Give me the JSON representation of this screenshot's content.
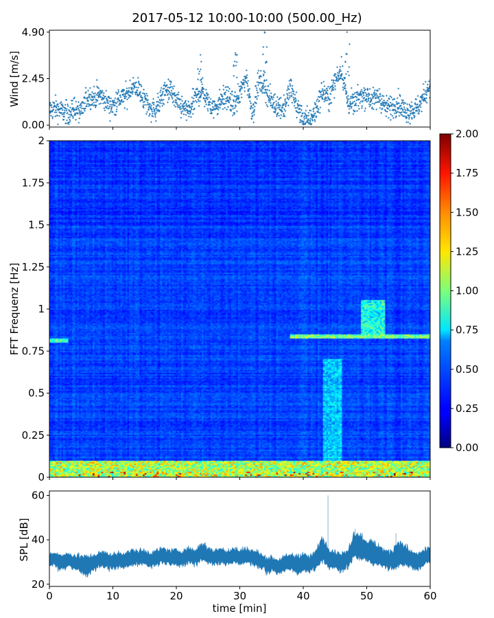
{
  "figure": {
    "title": "2017-05-12 10:00-10:00 (500.00_Hz)"
  },
  "chart_data": [
    {
      "type": "scatter",
      "panel": "wind",
      "ylabel": "Wind [m/s]",
      "xlim": [
        0,
        60
      ],
      "ylim": [
        -0.1,
        5.0
      ],
      "yticks": [
        0.0,
        2.45,
        4.9
      ],
      "ytick_labels": [
        "0.00",
        "2.45",
        "4.90"
      ],
      "color": "#1f77b4",
      "marker": "plus",
      "x": [
        0,
        1,
        2,
        3,
        4,
        5,
        6,
        7,
        8,
        9,
        10,
        11,
        12,
        13,
        14,
        15,
        16,
        17,
        18,
        19,
        20,
        21,
        22,
        23,
        24,
        25,
        26,
        27,
        28,
        29,
        30,
        31,
        32,
        33,
        34,
        35,
        36,
        37,
        38,
        39,
        40,
        41,
        42,
        43,
        44,
        45,
        46,
        47,
        48,
        49,
        50,
        51,
        52,
        53,
        54,
        55,
        56,
        57,
        58,
        59,
        60
      ],
      "y": [
        0.8,
        0.9,
        0.7,
        0.6,
        0.9,
        0.6,
        1.5,
        1.4,
        1.6,
        1.2,
        1.0,
        1.4,
        1.5,
        2.0,
        1.9,
        1.3,
        0.8,
        0.9,
        1.7,
        1.9,
        1.2,
        0.9,
        0.7,
        1.4,
        1.8,
        1.2,
        0.9,
        1.3,
        1.5,
        1.0,
        1.6,
        2.6,
        0.6,
        2.3,
        2.0,
        1.2,
        1.0,
        0.9,
        2.0,
        1.0,
        0.3,
        0.2,
        0.8,
        1.8,
        1.4,
        2.3,
        3.0,
        1.2,
        1.1,
        1.5,
        1.6,
        1.3,
        1.5,
        0.9,
        1.0,
        1.2,
        0.7,
        0.8,
        0.9,
        1.5,
        2.2
      ],
      "peaks": [
        {
          "x": 23.8,
          "y": 3.7
        },
        {
          "x": 29.3,
          "y": 3.8
        },
        {
          "x": 33.9,
          "y": 4.9
        },
        {
          "x": 46.9,
          "y": 4.9
        }
      ]
    },
    {
      "type": "heatmap",
      "panel": "spectrogram",
      "ylabel": "FFT Frequenz [Hz]",
      "xlim": [
        0,
        60
      ],
      "ylim": [
        0,
        2
      ],
      "yticks": [
        0,
        0.25,
        0.5,
        0.75,
        1,
        1.25,
        1.5,
        1.75,
        2
      ],
      "ytick_labels": [
        "0",
        "0.25",
        "0.5",
        "0.75",
        "1",
        "1.25",
        "1.5",
        "1.75",
        "2"
      ],
      "colormap": "jet",
      "colorbar": {
        "range": [
          0,
          2
        ],
        "ticks": [
          "0.00",
          "0.25",
          "0.50",
          "0.75",
          "1.00",
          "1.25",
          "1.50",
          "1.75",
          "2.00"
        ]
      },
      "features": [
        {
          "description": "persistent high energy band",
          "freq_range": [
            0,
            0.1
          ],
          "time_range": [
            0,
            60
          ],
          "level": 1.2
        },
        {
          "description": "narrow line",
          "freq": 0.81,
          "time_range": [
            0,
            3
          ],
          "level": 0.6
        },
        {
          "description": "narrow line",
          "freq": 0.84,
          "time_range": [
            38,
            60
          ],
          "level": 0.7
        },
        {
          "description": "burst",
          "freq_range": [
            0.1,
            0.7
          ],
          "time_range": [
            43,
            46
          ],
          "level": 0.6
        },
        {
          "description": "burst",
          "freq_range": [
            0.85,
            1.05
          ],
          "time_range": [
            49,
            53
          ],
          "level": 0.8
        }
      ]
    },
    {
      "type": "area",
      "panel": "spl",
      "xlabel": "time [min]",
      "ylabel": "SPL [dB]",
      "xlim": [
        0,
        60
      ],
      "ylim": [
        19,
        62
      ],
      "xticks": [
        0,
        10,
        20,
        30,
        40,
        50,
        60
      ],
      "xtick_labels": [
        "0",
        "10",
        "20",
        "30",
        "40",
        "50",
        "60"
      ],
      "yticks": [
        20,
        40,
        60
      ],
      "ytick_labels": [
        "20",
        "40",
        "60"
      ],
      "color": "#1f77b4",
      "x": [
        0,
        1,
        2,
        3,
        4,
        5,
        6,
        7,
        8,
        9,
        10,
        11,
        12,
        13,
        14,
        15,
        16,
        17,
        18,
        19,
        20,
        21,
        22,
        23,
        24,
        25,
        26,
        27,
        28,
        29,
        30,
        31,
        32,
        33,
        34,
        35,
        36,
        37,
        38,
        39,
        40,
        41,
        42,
        43,
        44,
        45,
        46,
        47,
        48,
        49,
        50,
        51,
        52,
        53,
        54,
        55,
        56,
        57,
        58,
        59,
        60
      ],
      "mean": [
        31,
        31,
        30,
        31,
        30,
        29,
        28,
        30,
        31,
        31,
        30,
        31,
        31,
        32,
        32,
        32,
        31,
        32,
        33,
        32,
        32,
        32,
        33,
        32,
        35,
        33,
        32,
        33,
        32,
        33,
        32,
        33,
        32,
        31,
        29,
        29,
        28,
        29,
        30,
        29,
        30,
        29,
        31,
        36,
        32,
        31,
        30,
        31,
        38,
        37,
        35,
        34,
        33,
        31,
        31,
        34,
        33,
        31,
        30,
        32,
        33
      ],
      "spread": [
        2.5,
        3,
        3,
        2.5,
        3,
        3.5,
        4,
        3,
        3,
        3,
        3,
        3,
        3,
        3,
        3,
        3,
        3,
        3,
        3,
        3,
        3,
        3,
        3,
        3,
        3.5,
        3,
        3,
        3,
        3,
        3,
        3,
        3,
        3,
        3,
        3,
        3,
        3,
        3,
        3,
        3.5,
        3.5,
        3,
        3.5,
        5,
        4,
        3.5,
        3.5,
        3.5,
        5,
        5,
        4.5,
        4.5,
        4,
        3.5,
        4,
        5,
        4,
        3.5,
        3.5,
        3,
        3
      ],
      "spikes": [
        {
          "x": 43.9,
          "y": 60
        },
        {
          "x": 48.2,
          "y": 45
        },
        {
          "x": 54.6,
          "y": 43
        }
      ]
    }
  ]
}
